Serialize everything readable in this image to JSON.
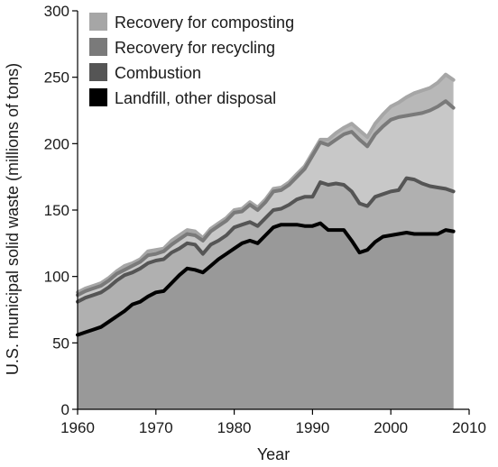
{
  "chart_data": {
    "type": "area",
    "title": "",
    "xlabel": "Year",
    "ylabel": "U.S. municipal solid waste (millions of tons)",
    "xlim": [
      1960,
      2010
    ],
    "ylim": [
      0,
      300
    ],
    "xticks": [
      1960,
      1970,
      1980,
      1990,
      2000,
      2010
    ],
    "yticks": [
      0,
      50,
      100,
      150,
      200,
      250,
      300
    ],
    "grid": false,
    "legend_position": "top-left",
    "x": [
      1960,
      1961,
      1962,
      1963,
      1964,
      1965,
      1966,
      1967,
      1968,
      1969,
      1970,
      1971,
      1972,
      1973,
      1974,
      1975,
      1976,
      1977,
      1978,
      1979,
      1980,
      1981,
      1982,
      1983,
      1984,
      1985,
      1986,
      1987,
      1988,
      1989,
      1990,
      1991,
      1992,
      1993,
      1994,
      1995,
      1996,
      1997,
      1998,
      1999,
      2000,
      2001,
      2002,
      2003,
      2004,
      2005,
      2006,
      2007,
      2008
    ],
    "series": [
      {
        "name": "Recovery for composting",
        "color": "#b8b8b8",
        "line_color": "#a6a6a6",
        "cumulative_top": [
          88,
          91,
          93,
          95,
          99,
          104,
          108,
          110,
          113,
          119,
          120,
          121,
          127,
          131,
          135,
          134,
          129,
          136,
          140,
          144,
          150,
          151,
          156,
          152,
          158,
          166,
          167,
          171,
          177,
          183,
          193,
          203,
          203,
          208,
          212,
          215,
          210,
          205,
          215,
          222,
          228,
          231,
          235,
          238,
          240,
          242,
          246,
          252,
          248
        ]
      },
      {
        "name": "Recovery for recycling",
        "color": "#c8c8c8",
        "line_color": "#7a7a7a",
        "cumulative_top": [
          86,
          89,
          91,
          93,
          97,
          102,
          105,
          108,
          111,
          116,
          117,
          119,
          124,
          128,
          132,
          131,
          127,
          134,
          138,
          142,
          148,
          149,
          154,
          150,
          156,
          164,
          165,
          169,
          175,
          181,
          191,
          201,
          199,
          203,
          207,
          209,
          203,
          198,
          207,
          213,
          218,
          220,
          221,
          222,
          223,
          225,
          228,
          232,
          227
        ]
      },
      {
        "name": "Combustion",
        "color": "#b0b0b0",
        "line_color": "#555555",
        "cumulative_top": [
          81,
          84,
          86,
          88,
          92,
          97,
          101,
          103,
          106,
          110,
          112,
          113,
          118,
          121,
          125,
          124,
          117,
          124,
          127,
          131,
          137,
          139,
          141,
          138,
          144,
          150,
          151,
          154,
          158,
          160,
          160,
          171,
          169,
          170,
          169,
          164,
          155,
          153,
          160,
          162,
          164,
          165,
          174,
          173,
          170,
          168,
          167,
          166,
          164
        ]
      },
      {
        "name": "Landfill, other disposal",
        "color": "#999999",
        "line_color": "#000000",
        "cumulative_top": [
          56,
          58,
          60,
          62,
          66,
          70,
          74,
          79,
          81,
          85,
          88,
          89,
          95,
          101,
          106,
          105,
          103,
          108,
          113,
          117,
          121,
          125,
          127,
          125,
          131,
          137,
          139,
          139,
          139,
          138,
          138,
          140,
          135,
          135,
          135,
          127,
          118,
          120,
          126,
          130,
          131,
          132,
          133,
          132,
          132,
          132,
          132,
          135,
          134
        ]
      }
    ]
  }
}
